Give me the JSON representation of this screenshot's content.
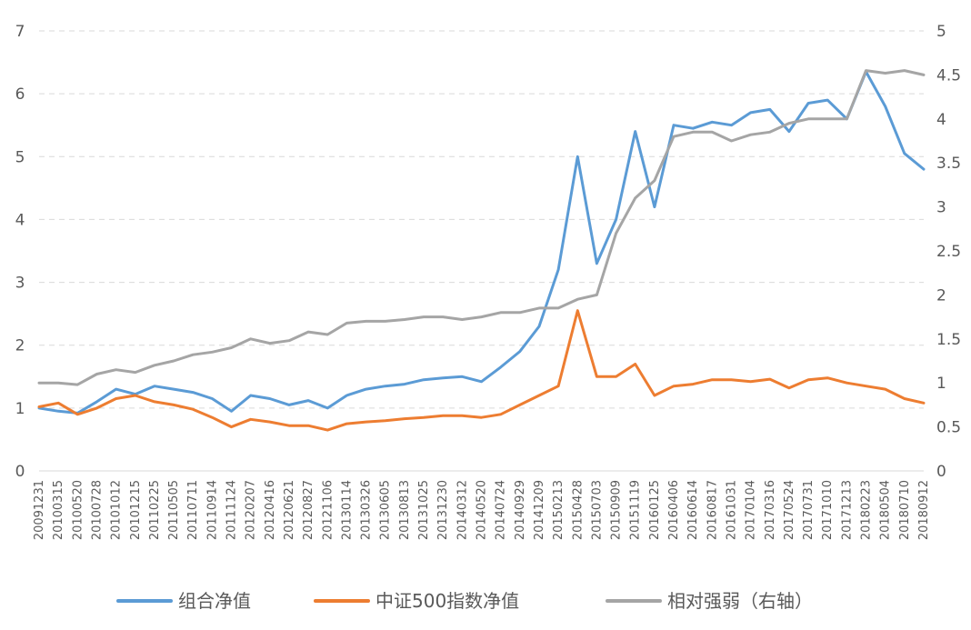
{
  "chart_data": {
    "type": "line",
    "title": "",
    "xlabel": "",
    "ylabel": "",
    "grid": true,
    "legend_position": "bottom",
    "y_left": {
      "min": 0,
      "max": 7,
      "ticks": [
        0,
        1,
        2,
        3,
        4,
        5,
        6,
        7
      ]
    },
    "y_right": {
      "min": 0,
      "max": 5,
      "ticks": [
        "0",
        "0.5",
        "1",
        "1.5",
        "2",
        "2.5",
        "3",
        "3.5",
        "4",
        "4.5",
        "5"
      ]
    },
    "x_tick_labels": [
      "20091231",
      "20100315",
      "20100520",
      "20100728",
      "20101012",
      "20101215",
      "20110225",
      "20110505",
      "20110711",
      "20110914",
      "20111124",
      "20120207",
      "20120416",
      "20120621",
      "20120827",
      "20121106",
      "20130114",
      "20130326",
      "20130605",
      "20130813",
      "20131025",
      "20131230",
      "20140312",
      "20140520",
      "20140724",
      "20140929",
      "20141209",
      "20150213",
      "20150428",
      "20150703",
      "20150909",
      "20151119",
      "20160125",
      "20160406",
      "20160614",
      "20160817",
      "20161031",
      "20170104",
      "20170316",
      "20170524",
      "20170731",
      "20171010",
      "20171213",
      "20180223",
      "20180504",
      "20180710",
      "20180912"
    ],
    "series": [
      {
        "name": "组合净值",
        "axis": "left",
        "color": "#5B9BD5",
        "values": [
          1.0,
          0.95,
          0.92,
          1.1,
          1.3,
          1.22,
          1.35,
          1.3,
          1.25,
          1.15,
          0.95,
          1.2,
          1.15,
          1.05,
          1.12,
          1.0,
          1.2,
          1.3,
          1.35,
          1.38,
          1.45,
          1.48,
          1.5,
          1.42,
          1.65,
          1.9,
          2.3,
          3.2,
          5.0,
          3.3,
          4.0,
          5.4,
          4.2,
          5.5,
          5.45,
          5.55,
          5.5,
          5.7,
          5.75,
          5.4,
          5.85,
          5.9,
          5.6,
          6.35,
          5.8,
          5.05,
          4.8
        ]
      },
      {
        "name": "中证500指数净值",
        "axis": "left",
        "color": "#ED7D31",
        "values": [
          1.02,
          1.08,
          0.9,
          1.0,
          1.15,
          1.2,
          1.1,
          1.05,
          0.98,
          0.85,
          0.7,
          0.82,
          0.78,
          0.72,
          0.72,
          0.65,
          0.75,
          0.78,
          0.8,
          0.83,
          0.85,
          0.88,
          0.88,
          0.85,
          0.9,
          1.05,
          1.2,
          1.35,
          2.55,
          1.5,
          1.5,
          1.7,
          1.2,
          1.35,
          1.38,
          1.45,
          1.45,
          1.42,
          1.46,
          1.32,
          1.45,
          1.48,
          1.4,
          1.35,
          1.3,
          1.15,
          1.08
        ]
      },
      {
        "name": "相对强弱（右轴）",
        "axis": "right",
        "color": "#A5A5A5",
        "values": [
          1.0,
          1.0,
          0.98,
          1.1,
          1.15,
          1.12,
          1.2,
          1.25,
          1.32,
          1.35,
          1.4,
          1.5,
          1.45,
          1.48,
          1.58,
          1.55,
          1.68,
          1.7,
          1.7,
          1.72,
          1.75,
          1.75,
          1.72,
          1.75,
          1.8,
          1.8,
          1.85,
          1.85,
          1.95,
          2.0,
          2.7,
          3.1,
          3.3,
          3.8,
          3.85,
          3.85,
          3.75,
          3.82,
          3.85,
          3.95,
          4.0,
          4.0,
          4.0,
          4.55,
          4.52,
          4.55,
          4.5
        ]
      }
    ]
  }
}
